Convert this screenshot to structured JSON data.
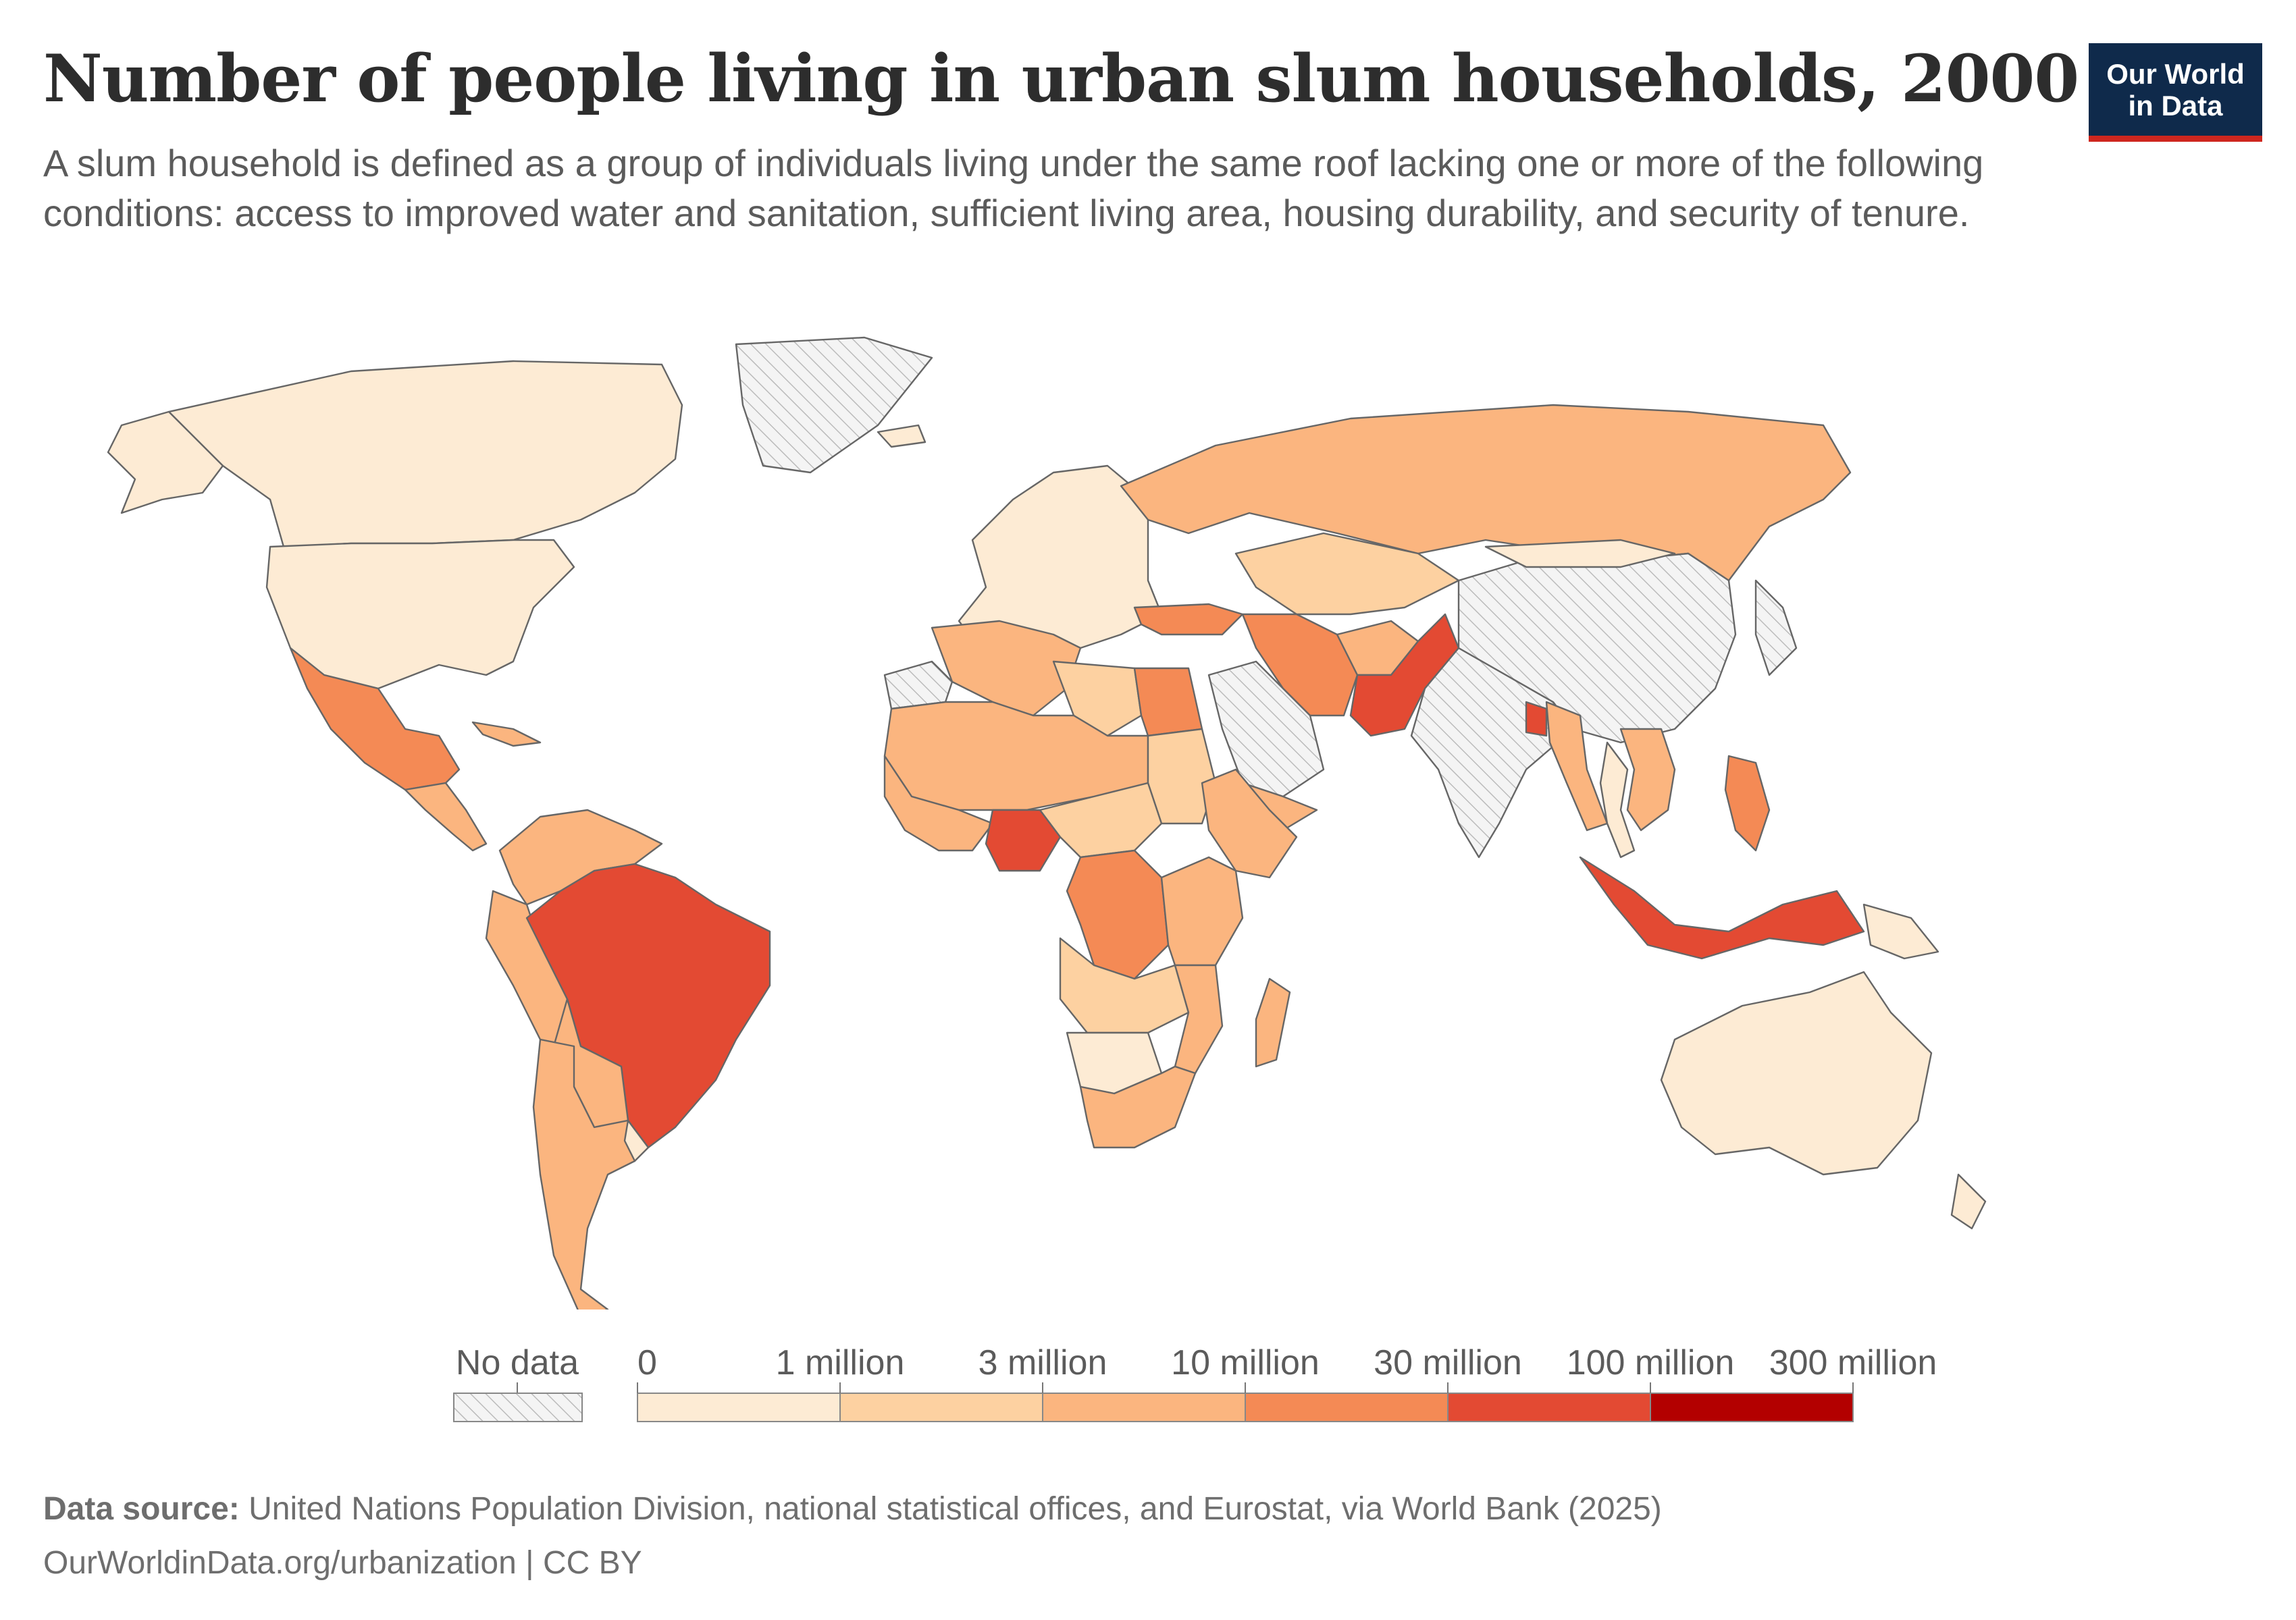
{
  "title": "Number of people living in urban slum households, 2000",
  "subtitle": "A slum household is defined as a group of individuals living under the same roof lacking one or more of the following conditions: access to improved water and sanitation, sufficient living area, housing durability, and security of tenure.",
  "logo": {
    "line1": "Our World",
    "line2": "in Data",
    "bg": "#0f2a4b",
    "accent": "#ce261e"
  },
  "legend": {
    "no_data_label": "No data",
    "tick_labels": [
      "0",
      "1 million",
      "3 million",
      "10 million",
      "30 million",
      "100 million",
      "300 million"
    ],
    "bins": [
      {
        "from": 0,
        "to": 1000000,
        "color": "#fdebd4"
      },
      {
        "from": 1000000,
        "to": 3000000,
        "color": "#fdd1a1"
      },
      {
        "from": 3000000,
        "to": 10000000,
        "color": "#fbb57f"
      },
      {
        "from": 10000000,
        "to": 30000000,
        "color": "#f48a55"
      },
      {
        "from": 30000000,
        "to": 100000000,
        "color": "#e34a33"
      },
      {
        "from": 100000000,
        "to": 300000000,
        "color": "#b30000"
      }
    ]
  },
  "map_regions": [
    {
      "name": "Canada",
      "bin": 0
    },
    {
      "name": "United States",
      "bin": 0
    },
    {
      "name": "Alaska",
      "bin": 0
    },
    {
      "name": "Greenland",
      "bin": null
    },
    {
      "name": "Mexico",
      "bin": 3
    },
    {
      "name": "Central America",
      "bin": 2
    },
    {
      "name": "Cuba",
      "bin": 2
    },
    {
      "name": "Colombia / Venezuela",
      "bin": 2
    },
    {
      "name": "Peru / Ecuador",
      "bin": 2
    },
    {
      "name": "Brazil",
      "bin": 4
    },
    {
      "name": "Bolivia / Paraguay",
      "bin": 2
    },
    {
      "name": "Argentina / Chile",
      "bin": 2
    },
    {
      "name": "Uruguay",
      "bin": 0
    },
    {
      "name": "Europe",
      "bin": 0
    },
    {
      "name": "Iceland",
      "bin": 0
    },
    {
      "name": "Russia",
      "bin": 2
    },
    {
      "name": "Kazakhstan / Central Asia",
      "bin": 1
    },
    {
      "name": "Turkey",
      "bin": 3
    },
    {
      "name": "Iran",
      "bin": 3
    },
    {
      "name": "Afghanistan",
      "bin": 2
    },
    {
      "name": "Pakistan",
      "bin": 4
    },
    {
      "name": "India",
      "bin": null
    },
    {
      "name": "China",
      "bin": null
    },
    {
      "name": "Saudi Arabia",
      "bin": null
    },
    {
      "name": "Yemen",
      "bin": 2
    },
    {
      "name": "Mongolia",
      "bin": 0
    },
    {
      "name": "Japan / Korea",
      "bin": null
    },
    {
      "name": "Bangladesh",
      "bin": 4
    },
    {
      "name": "Myanmar",
      "bin": 2
    },
    {
      "name": "Thailand",
      "bin": 0
    },
    {
      "name": "Vietnam / Laos / Cambodia",
      "bin": 2
    },
    {
      "name": "Philippines",
      "bin": 3
    },
    {
      "name": "Indonesia",
      "bin": 4
    },
    {
      "name": "Papua New Guinea",
      "bin": 0
    },
    {
      "name": "Australia",
      "bin": 0
    },
    {
      "name": "New Zealand",
      "bin": 0
    },
    {
      "name": "North Africa (Maghreb)",
      "bin": 2
    },
    {
      "name": "Libya",
      "bin": 1
    },
    {
      "name": "Egypt",
      "bin": 3
    },
    {
      "name": "Western Sahara",
      "bin": null
    },
    {
      "name": "Sahel",
      "bin": 2
    },
    {
      "name": "Sudan",
      "bin": 1
    },
    {
      "name": "Ethiopia / Horn of Africa",
      "bin": 2
    },
    {
      "name": "West Africa coast",
      "bin": 2
    },
    {
      "name": "Nigeria",
      "bin": 4
    },
    {
      "name": "Central Africa",
      "bin": 1
    },
    {
      "name": "DR Congo",
      "bin": 3
    },
    {
      "name": "East Africa",
      "bin": 2
    },
    {
      "name": "Angola / Zambia",
      "bin": 1
    },
    {
      "name": "Mozambique / Malawi",
      "bin": 2
    },
    {
      "name": "Namibia / Botswana",
      "bin": 0
    },
    {
      "name": "South Africa",
      "bin": 2
    },
    {
      "name": "Madagascar",
      "bin": 2
    }
  ],
  "source": {
    "label": "Data source:",
    "text": "United Nations Population Division, national statistical offices, and Eurostat, via World Bank (2025)"
  },
  "credit": "OurWorldinData.org/urbanization | CC BY"
}
